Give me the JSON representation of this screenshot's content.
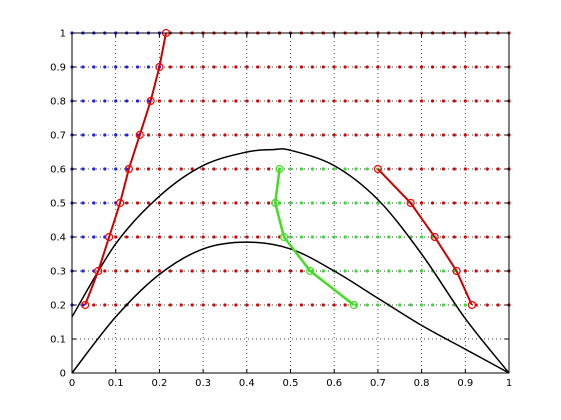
{
  "chart_data": {
    "type": "scatter",
    "title": "",
    "xlabel": "",
    "ylabel": "",
    "xlim": [
      0,
      1
    ],
    "ylim": [
      0,
      1
    ],
    "grid": true,
    "x_ticks": [
      "0",
      "0.1",
      "0.2",
      "0.3",
      "0.4",
      "0.5",
      "0.6",
      "0.7",
      "0.8",
      "0.9",
      "1"
    ],
    "y_ticks": [
      "0",
      "0.1",
      "0.2",
      "0.3",
      "0.4",
      "0.5",
      "0.6",
      "0.7",
      "0.8",
      "0.9",
      "1"
    ],
    "grid_rows": [
      {
        "y": 1.0,
        "blue_until": 0.215
      },
      {
        "y": 0.9,
        "blue_until": 0.2
      },
      {
        "y": 0.8,
        "blue_until": 0.18
      },
      {
        "y": 0.7,
        "blue_until": 0.155
      },
      {
        "y": 0.6,
        "blue_until": 0.13
      },
      {
        "y": 0.5,
        "blue_until": 0.11
      },
      {
        "y": 0.4,
        "blue_until": 0.085
      },
      {
        "y": 0.3,
        "blue_until": 0.06
      },
      {
        "y": 0.2,
        "blue_until": 0.03
      }
    ],
    "green_region": {
      "rows": [
        {
          "y": 0.6,
          "from": 0.475,
          "to": 0.7
        },
        {
          "y": 0.5,
          "from": 0.465,
          "to": 0.775
        },
        {
          "y": 0.4,
          "from": 0.485,
          "to": 0.83
        },
        {
          "y": 0.3,
          "from": 0.545,
          "to": 0.88
        },
        {
          "y": 0.2,
          "from": 0.645,
          "to": 0.915
        }
      ]
    },
    "curves": [
      {
        "color": "#000000",
        "width": 1.5,
        "x": [
          0,
          0.1,
          0.2,
          0.3,
          0.4,
          0.46,
          0.5,
          0.6,
          0.7,
          0.8,
          0.9,
          1.0
        ],
        "y": [
          0.165,
          0.38,
          0.52,
          0.61,
          0.65,
          0.657,
          0.655,
          0.61,
          0.51,
          0.35,
          0.16,
          0.0
        ]
      },
      {
        "color": "#000000",
        "width": 1.5,
        "x": [
          0,
          0.1,
          0.2,
          0.3,
          0.4,
          0.5,
          0.6,
          0.7,
          0.8,
          0.9,
          1.0
        ],
        "y": [
          0.0,
          0.165,
          0.29,
          0.365,
          0.385,
          0.365,
          0.3,
          0.22,
          0.14,
          0.07,
          0.0
        ]
      }
    ],
    "polylines": [
      {
        "color": "#cc0000",
        "width": 2,
        "marker_color": "#ff0000",
        "x": [
          0.03,
          0.06,
          0.085,
          0.11,
          0.13,
          0.155,
          0.18,
          0.2,
          0.215
        ],
        "y": [
          0.2,
          0.3,
          0.4,
          0.5,
          0.6,
          0.7,
          0.8,
          0.9,
          1.0
        ]
      },
      {
        "color": "#cc0000",
        "width": 2,
        "marker_color": "#ff0000",
        "x": [
          0.7,
          0.775,
          0.83,
          0.88,
          0.915
        ],
        "y": [
          0.6,
          0.5,
          0.4,
          0.3,
          0.2
        ]
      },
      {
        "color": "#44dd22",
        "width": 2.5,
        "marker_color": "#44dd22",
        "x": [
          0.475,
          0.465,
          0.485,
          0.545,
          0.645
        ],
        "y": [
          0.6,
          0.5,
          0.4,
          0.3,
          0.2
        ]
      }
    ],
    "colors": {
      "blue_points": "#1a1aff",
      "red_points": "#dd0000",
      "green_points": "#33dd33"
    }
  }
}
